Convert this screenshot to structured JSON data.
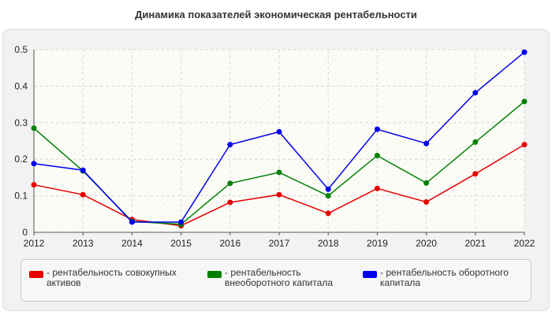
{
  "chart_data": {
    "type": "line",
    "title": "Динамика показателей экономическая рентабельности",
    "xlabel": "",
    "ylabel": "",
    "ylim": [
      0,
      0.5
    ],
    "yticks": [
      "0",
      "0.1",
      "0.2",
      "0.3",
      "0.4",
      "0.5"
    ],
    "x": [
      "2012",
      "2013",
      "2014",
      "2015",
      "2016",
      "2017",
      "2018",
      "2019",
      "2020",
      "2021",
      "2022"
    ],
    "grid": true,
    "legend_position": "bottom",
    "series": [
      {
        "name": "рентабельность совокупных активов",
        "color": "#e60000",
        "values": [
          0.13,
          0.103,
          0.035,
          0.018,
          0.082,
          0.103,
          0.052,
          0.12,
          0.083,
          0.16,
          0.24
        ]
      },
      {
        "name": "рентабельность внеоборотного капитала",
        "color": "#008000",
        "values": [
          0.285,
          0.168,
          0.03,
          0.022,
          0.134,
          0.164,
          0.1,
          0.21,
          0.135,
          0.247,
          0.358
        ]
      },
      {
        "name": "рентабельность оборотного капитала",
        "color": "#0000ee",
        "values": [
          0.188,
          0.17,
          0.028,
          0.028,
          0.24,
          0.275,
          0.118,
          0.282,
          0.243,
          0.382,
          0.493
        ]
      }
    ]
  }
}
